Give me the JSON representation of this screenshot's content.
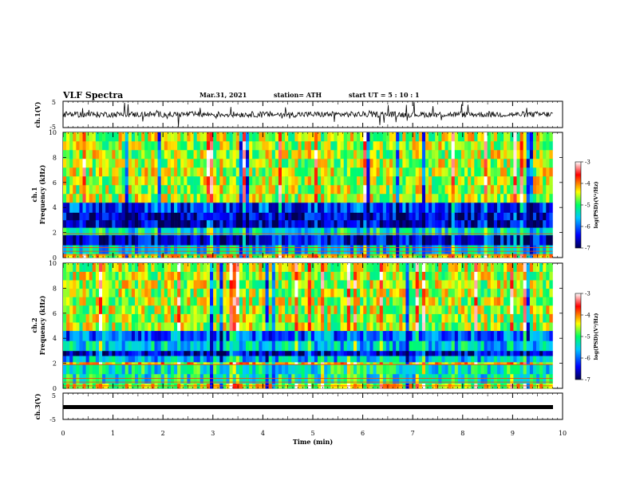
{
  "header": {
    "title": "VLF Spectra",
    "date": "Mar.31, 2021",
    "station": "station= ATH",
    "start": "start  UT =   5 : 10 : 1"
  },
  "chart_data": [
    {
      "type": "line",
      "panel": "channel-1-waveform",
      "ylabel": "ch.1(V)",
      "ylim": [
        -5,
        5
      ],
      "y_ticks": [
        "5",
        "-5"
      ],
      "x_ticks": [
        "0",
        "1",
        "2",
        "3",
        "4",
        "5",
        "6",
        "7",
        "8",
        "9",
        "10"
      ],
      "xlim": [
        0,
        10
      ],
      "series": [
        {
          "baseline": 0,
          "noise_amplitude": 1.2
        }
      ]
    },
    {
      "type": "heatmap",
      "panel": "channel-1-spectrogram",
      "ylabel": "ch.1\nFrequency (kHz)",
      "ylim": [
        0,
        10
      ],
      "y_ticks": [
        "0",
        "2",
        "4",
        "6",
        "8",
        "10"
      ],
      "xlim": [
        0,
        9.8
      ],
      "colorbar": {
        "label": "log(PSD)(V²/Hz)",
        "range": [
          -7,
          -3
        ],
        "ticks": [
          "-3",
          "-4",
          "-5",
          "-6",
          "-7"
        ]
      },
      "layers_khz": [
        {
          "from": 0,
          "to": 0.3,
          "level": -4.5
        },
        {
          "from": 0.3,
          "to": 1.0,
          "level": -5.5
        },
        {
          "from": 1.0,
          "to": 1.8,
          "level": -6.5
        },
        {
          "from": 1.8,
          "to": 2.4,
          "level": -5.3
        },
        {
          "from": 2.4,
          "to": 3.6,
          "level": -6.6
        },
        {
          "from": 3.6,
          "to": 4.4,
          "level": -6.2
        },
        {
          "from": 4.4,
          "to": 10,
          "level": -4.6
        }
      ]
    },
    {
      "type": "heatmap",
      "panel": "channel-2-spectrogram",
      "ylabel": "ch.2\nFrequency (kHz)",
      "ylim": [
        0,
        10
      ],
      "y_ticks": [
        "0",
        "2",
        "4",
        "6",
        "8",
        "10"
      ],
      "xlim": [
        0,
        9.8
      ],
      "colorbar": {
        "label": "log(PSD)(V²/Hz)",
        "range": [
          -7,
          -3
        ],
        "ticks": [
          "-3",
          "-4",
          "-5",
          "-6",
          "-7"
        ]
      },
      "layers_khz": [
        {
          "from": 0,
          "to": 0.4,
          "level": -4.5
        },
        {
          "from": 0.4,
          "to": 1.9,
          "level": -5.3
        },
        {
          "from": 1.9,
          "to": 2.1,
          "level": -4.3
        },
        {
          "from": 2.1,
          "to": 2.6,
          "level": -5.6
        },
        {
          "from": 2.6,
          "to": 3.0,
          "level": -6.6
        },
        {
          "from": 3.0,
          "to": 3.8,
          "level": -5.5
        },
        {
          "from": 3.8,
          "to": 4.6,
          "level": -6.0
        },
        {
          "from": 4.6,
          "to": 10,
          "level": -4.6
        }
      ]
    },
    {
      "type": "line",
      "panel": "channel-3-waveform",
      "ylabel": "ch.3(V)",
      "ylim": [
        -5,
        5
      ],
      "y_ticks": [
        "5",
        "-5"
      ],
      "xlim": [
        0,
        10
      ],
      "series": [
        {
          "baseline": 0,
          "thickness_volts": 1
        }
      ]
    }
  ],
  "x_axis": {
    "label": "Time (min)",
    "ticks": [
      "0",
      "1",
      "2",
      "3",
      "4",
      "5",
      "6",
      "7",
      "8",
      "9",
      "10"
    ]
  },
  "colors": {
    "background": "#ffffff",
    "axis": "#000000",
    "colormap": [
      "#000064",
      "#0000ff",
      "#00c8ff",
      "#00ff64",
      "#ffff00",
      "#ff0000",
      "#ffffff"
    ]
  }
}
